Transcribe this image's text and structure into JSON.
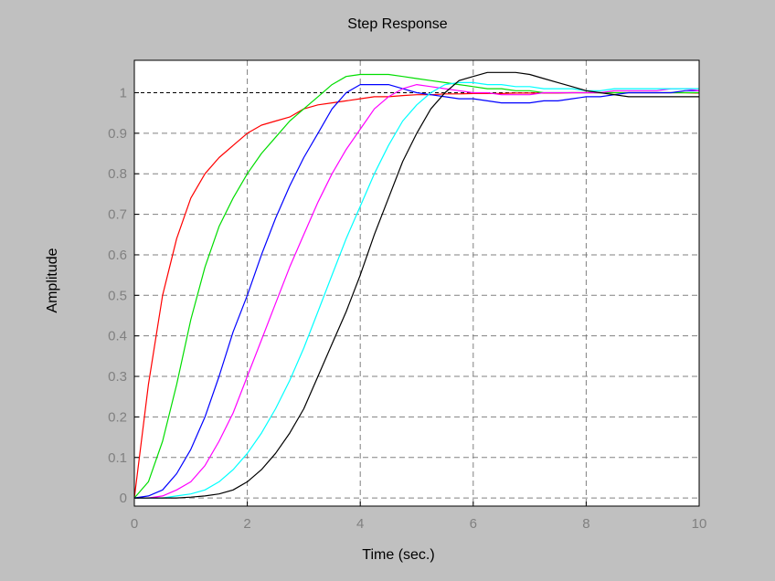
{
  "chart_data": {
    "type": "line",
    "title": "Step Response",
    "xlabel": "Time (sec.)",
    "ylabel": "Amplitude",
    "xlim": [
      0,
      10
    ],
    "ylim": [
      -0.02,
      1.08
    ],
    "xticks": [
      0,
      2,
      4,
      6,
      8,
      10
    ],
    "xtick_labels": [
      "0",
      "2",
      "4",
      "6",
      "8",
      "10"
    ],
    "yticks": [
      0,
      0.1,
      0.2,
      0.3,
      0.4,
      0.5,
      0.6,
      0.7,
      0.8,
      0.9,
      1
    ],
    "ytick_labels": [
      "0",
      "0.1",
      "0.2",
      "0.3",
      "0.4",
      "0.5",
      "0.6",
      "0.7",
      "0.8",
      "0.9",
      "1"
    ],
    "grid": true,
    "reference_line": {
      "y": 1,
      "style": "dashed",
      "color": "#000000"
    },
    "colors": {
      "figure_background": "#c0c0c0",
      "axes_background": "#ffffff",
      "grid": "#808080",
      "tick_label": "#808080"
    },
    "x": [
      0,
      0.25,
      0.5,
      0.75,
      1,
      1.25,
      1.5,
      1.75,
      2,
      2.25,
      2.5,
      2.75,
      3,
      3.25,
      3.5,
      3.75,
      4,
      4.25,
      4.5,
      4.75,
      5,
      5.25,
      5.5,
      5.75,
      6,
      6.25,
      6.5,
      6.75,
      7,
      7.25,
      7.5,
      7.75,
      8,
      8.25,
      8.5,
      8.75,
      9,
      9.25,
      9.5,
      9.75,
      10
    ],
    "series": [
      {
        "color": "#ff0000",
        "values": [
          0,
          0.28,
          0.5,
          0.64,
          0.74,
          0.8,
          0.84,
          0.87,
          0.9,
          0.92,
          0.93,
          0.94,
          0.96,
          0.97,
          0.975,
          0.98,
          0.985,
          0.99,
          0.99,
          0.993,
          0.995,
          0.995,
          0.997,
          0.997,
          0.998,
          0.998,
          0.998,
          0.999,
          0.999,
          0.999,
          0.999,
          1,
          1,
          1,
          1,
          1,
          1,
          1,
          1,
          1,
          0.999
        ]
      },
      {
        "color": "#00dd00",
        "values": [
          0,
          0.04,
          0.14,
          0.28,
          0.44,
          0.57,
          0.67,
          0.74,
          0.8,
          0.85,
          0.89,
          0.93,
          0.96,
          0.99,
          1.02,
          1.04,
          1.045,
          1.045,
          1.045,
          1.04,
          1.035,
          1.03,
          1.025,
          1.02,
          1.015,
          1.01,
          1.01,
          1.005,
          1.005,
          1.0,
          1.0,
          1.0,
          1.0,
          1.0,
          1.0,
          1.0,
          1.0,
          1.0,
          1.0,
          1.0,
          1.0
        ]
      },
      {
        "color": "#0000ff",
        "values": [
          0,
          0.005,
          0.02,
          0.06,
          0.12,
          0.2,
          0.3,
          0.41,
          0.5,
          0.6,
          0.69,
          0.77,
          0.84,
          0.9,
          0.96,
          1.0,
          1.02,
          1.02,
          1.02,
          1.01,
          1.0,
          0.995,
          0.99,
          0.985,
          0.985,
          0.98,
          0.975,
          0.975,
          0.975,
          0.98,
          0.98,
          0.985,
          0.99,
          0.99,
          0.995,
          1.0,
          1.0,
          1.0,
          1.0,
          1.005,
          1.005
        ]
      },
      {
        "color": "#ff00ff",
        "values": [
          0,
          0,
          0.005,
          0.02,
          0.04,
          0.08,
          0.14,
          0.21,
          0.3,
          0.39,
          0.48,
          0.57,
          0.65,
          0.73,
          0.8,
          0.86,
          0.91,
          0.96,
          0.99,
          1.01,
          1.02,
          1.015,
          1.01,
          1.005,
          1.0,
          1.0,
          0.995,
          0.995,
          0.995,
          1.0,
          1.0,
          1.0,
          1.0,
          1.0,
          1.005,
          1.005,
          1.005,
          1.005,
          1.01,
          1.01,
          1.005
        ]
      },
      {
        "color": "#00ffff",
        "values": [
          0,
          0,
          0,
          0.005,
          0.01,
          0.02,
          0.04,
          0.07,
          0.11,
          0.16,
          0.22,
          0.29,
          0.37,
          0.46,
          0.55,
          0.64,
          0.72,
          0.8,
          0.87,
          0.93,
          0.97,
          1.0,
          1.02,
          1.025,
          1.025,
          1.02,
          1.02,
          1.015,
          1.015,
          1.01,
          1.01,
          1.01,
          1.005,
          1.005,
          1.01,
          1.01,
          1.01,
          1.01,
          1.01,
          1.01,
          1.01
        ]
      },
      {
        "color": "#000000",
        "values": [
          0,
          0,
          0,
          0,
          0.002,
          0.005,
          0.01,
          0.02,
          0.04,
          0.07,
          0.11,
          0.16,
          0.22,
          0.3,
          0.38,
          0.46,
          0.55,
          0.65,
          0.74,
          0.83,
          0.9,
          0.96,
          1.0,
          1.03,
          1.04,
          1.05,
          1.05,
          1.05,
          1.045,
          1.035,
          1.025,
          1.015,
          1.005,
          1.0,
          0.995,
          0.99,
          0.99,
          0.99,
          0.99,
          0.99,
          0.99
        ]
      }
    ]
  }
}
